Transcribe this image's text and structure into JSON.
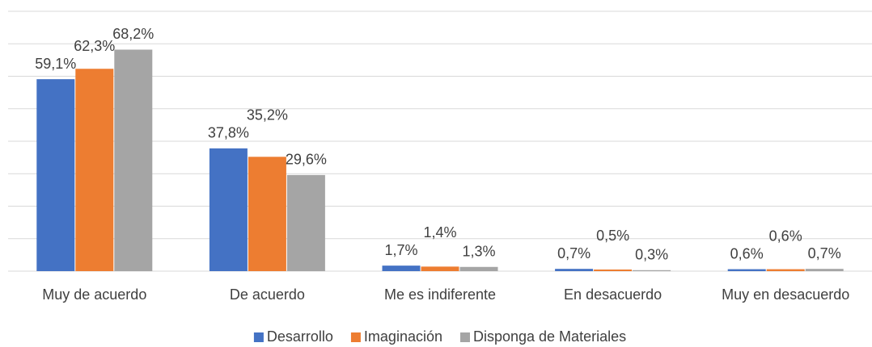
{
  "chart_data": {
    "type": "bar",
    "categories": [
      "Muy de acuerdo",
      "De acuerdo",
      "Me es indiferente",
      "En desacuerdo",
      "Muy en desacuerdo"
    ],
    "series": [
      {
        "name": "Desarrollo",
        "color": "#4472c4",
        "values": [
          59.1,
          37.8,
          1.7,
          0.7,
          0.6
        ],
        "value_labels": [
          "59,1%",
          "37,8%",
          "1,7%",
          "0,7%",
          "0,6%"
        ]
      },
      {
        "name": "Imaginación",
        "color": "#ed7d31",
        "values": [
          62.3,
          35.2,
          1.4,
          0.5,
          0.6
        ],
        "value_labels": [
          "62,3%",
          "35,2%",
          "1,4%",
          "0,5%",
          "0,6%"
        ]
      },
      {
        "name": "Disponga de Materiales",
        "color": "#a5a5a5",
        "values": [
          68.2,
          29.6,
          1.3,
          0.3,
          0.7
        ],
        "value_labels": [
          "68,2%",
          "29,6%",
          "1,3%",
          "0,3%",
          "0,7%"
        ]
      }
    ],
    "ylim": [
      0,
      80
    ],
    "yticks": [
      0,
      10,
      20,
      30,
      40,
      50,
      60,
      70,
      80
    ],
    "grid": true,
    "legend": "bottom"
  }
}
